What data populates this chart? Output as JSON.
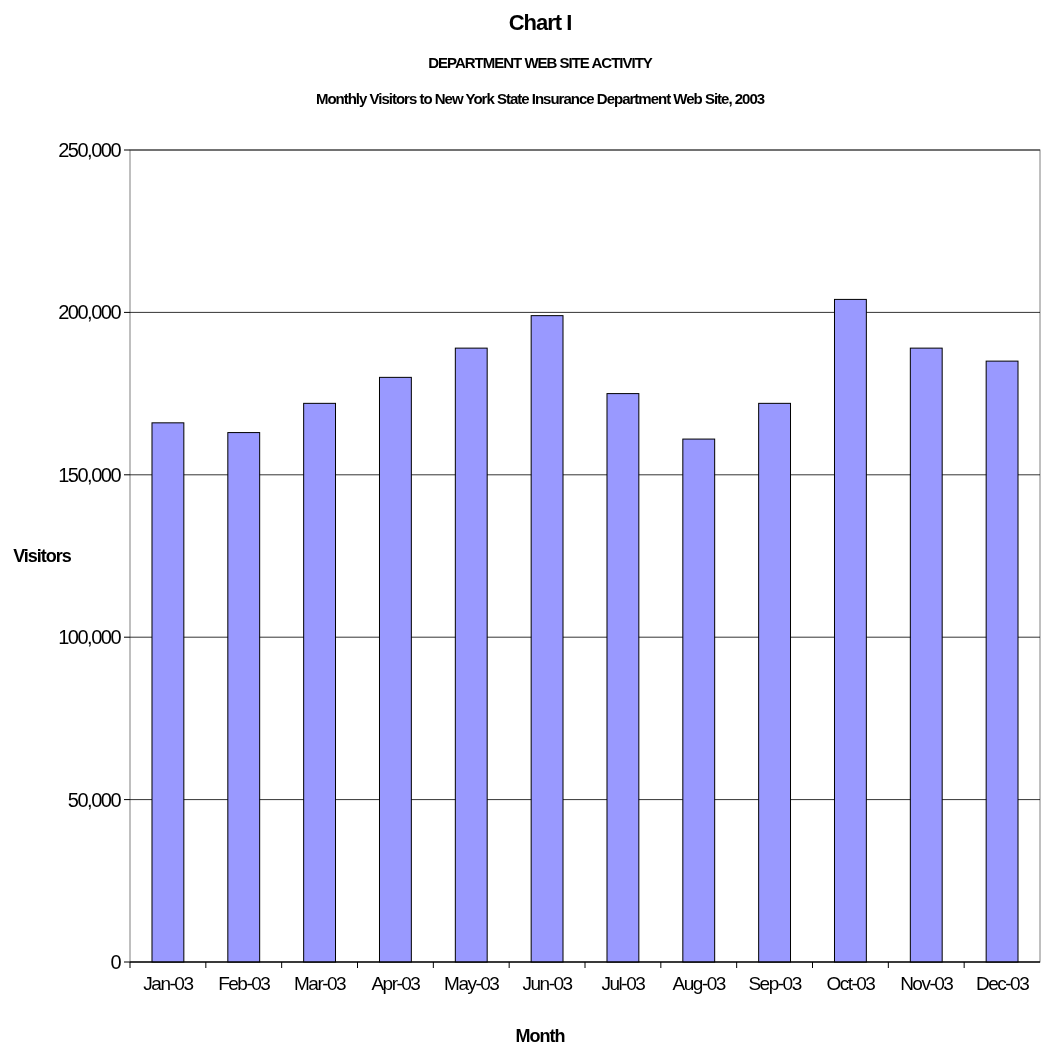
{
  "chart_data": {
    "type": "bar",
    "title": "Chart I",
    "subtitle": "DEPARTMENT WEB SITE ACTIVITY",
    "annotations": [
      "Monthly Visitors to New York State Insurance Department Web Site, 2003"
    ],
    "xlabel": "Month",
    "ylabel": "Visitors",
    "categories": [
      "Jan-03",
      "Feb-03",
      "Mar-03",
      "Apr-03",
      "May-03",
      "Jun-03",
      "Jul-03",
      "Aug-03",
      "Sep-03",
      "Oct-03",
      "Nov-03",
      "Dec-03"
    ],
    "values": [
      166000,
      163000,
      172000,
      180000,
      189000,
      199000,
      175000,
      161000,
      172000,
      204000,
      189000,
      185000
    ],
    "color": "#9999ff",
    "ylim": [
      0,
      250000
    ],
    "yticks": [
      {
        "value": 0,
        "label": "0"
      },
      {
        "value": 50000,
        "label": "50,000"
      },
      {
        "value": 100000,
        "label": "100,000"
      },
      {
        "value": 150000,
        "label": "150,000"
      },
      {
        "value": 200000,
        "label": "200,000"
      },
      {
        "value": 250000,
        "label": "250,000"
      }
    ],
    "grid": "y"
  }
}
